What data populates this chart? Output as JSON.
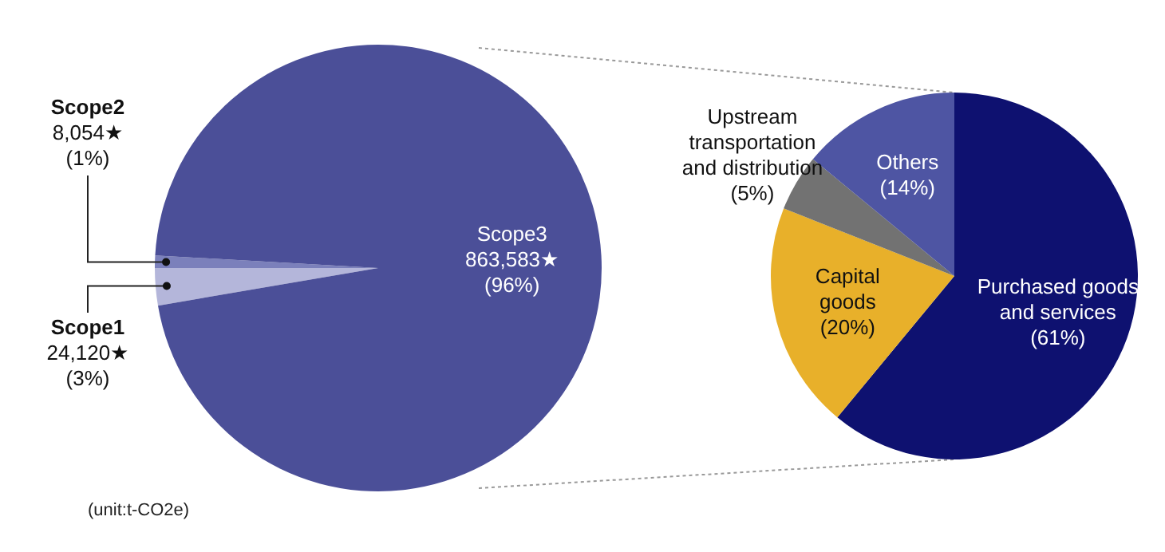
{
  "chart_data": [
    {
      "type": "pie",
      "categories": [
        "Scope1",
        "Scope2",
        "Scope3"
      ],
      "values": [
        24120,
        8054,
        863583
      ],
      "colors": [
        "#b4b6da",
        "#7b80bb",
        "#4b4f98"
      ],
      "value_labels": [
        "24,120★\n(3%)",
        "8,054★\n(1%)",
        "863,583★\n(96%)"
      ],
      "legend": false,
      "annotations": [
        "(unit:t-CO2e)"
      ]
    },
    {
      "type": "pie",
      "categories": [
        "Purchased goods and services",
        "Capital goods",
        "Upstream transportation and distribution",
        "Others"
      ],
      "values": [
        61,
        20,
        5,
        14
      ],
      "colors": [
        "#0e1170",
        "#e8b02a",
        "#727272",
        "#4e55a3"
      ],
      "value_labels": [
        "(61%)",
        "(20%)",
        "(5%)",
        "(14%)"
      ],
      "legend": false
    }
  ]
}
